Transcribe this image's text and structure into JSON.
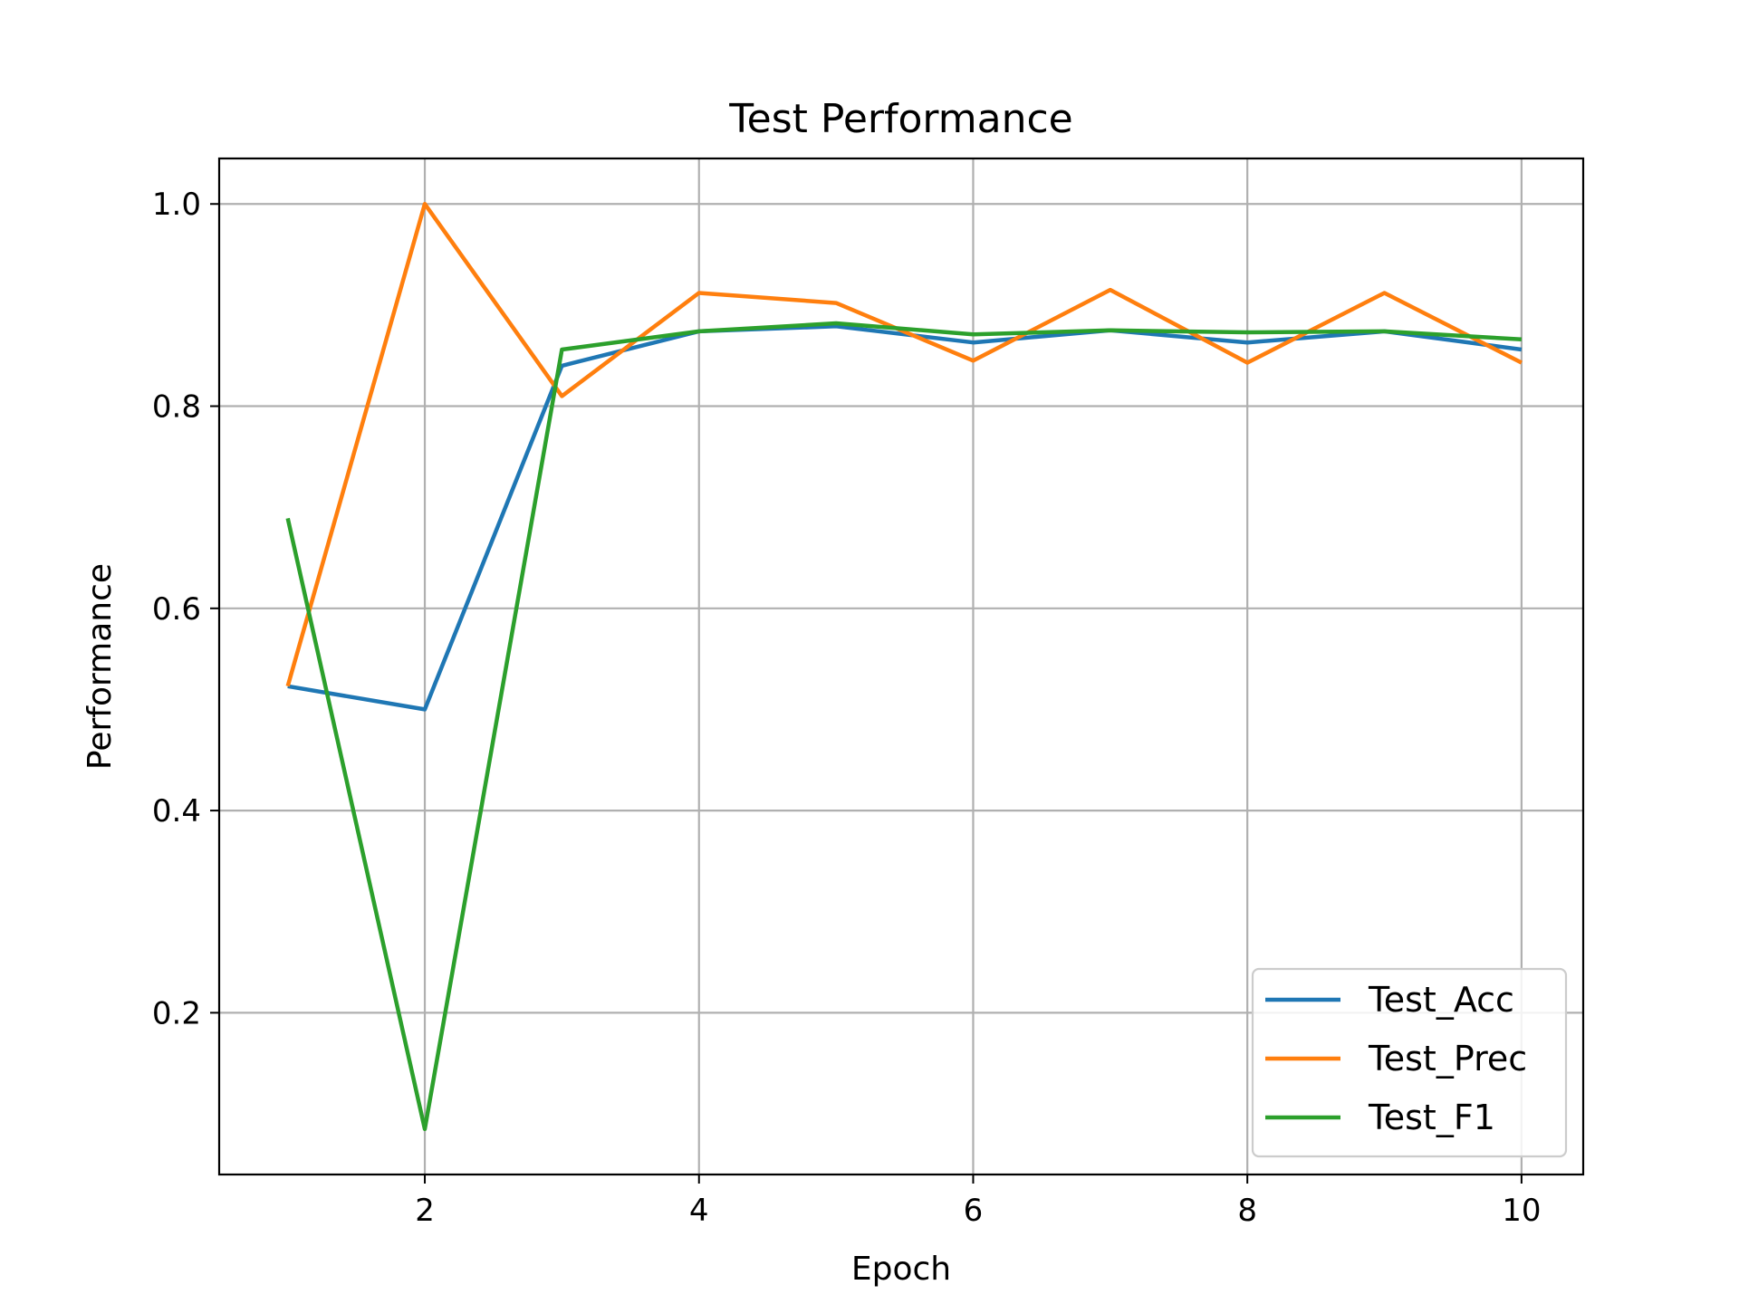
{
  "chart_data": {
    "type": "line",
    "title": "Test Performance",
    "xlabel": "Epoch",
    "ylabel": "Performance",
    "xlim": [
      0.5,
      10.45
    ],
    "ylim": [
      0.04,
      1.045
    ],
    "xticks": [
      2,
      4,
      6,
      8,
      10
    ],
    "xtick_labels": [
      "2",
      "4",
      "6",
      "8",
      "10"
    ],
    "yticks": [
      0.2,
      0.4,
      0.6,
      0.8,
      1.0
    ],
    "ytick_labels": [
      "0.2",
      "0.4",
      "0.6",
      "0.8",
      "1.0"
    ],
    "grid": true,
    "legend_position": "lower-right",
    "x": [
      1,
      2,
      3,
      4,
      5,
      6,
      7,
      8,
      9,
      10
    ],
    "series": [
      {
        "name": "Test_Acc",
        "color": "#1f77b4",
        "values": [
          0.523,
          0.5,
          0.84,
          0.874,
          0.879,
          0.863,
          0.875,
          0.863,
          0.874,
          0.856
        ]
      },
      {
        "name": "Test_Prec",
        "color": "#ff7f0e",
        "values": [
          0.523,
          1.0,
          0.81,
          0.912,
          0.902,
          0.845,
          0.915,
          0.843,
          0.912,
          0.843
        ]
      },
      {
        "name": "Test_F1",
        "color": "#2ca02c",
        "values": [
          0.689,
          0.085,
          0.856,
          0.874,
          0.882,
          0.871,
          0.875,
          0.873,
          0.874,
          0.866
        ]
      }
    ]
  }
}
